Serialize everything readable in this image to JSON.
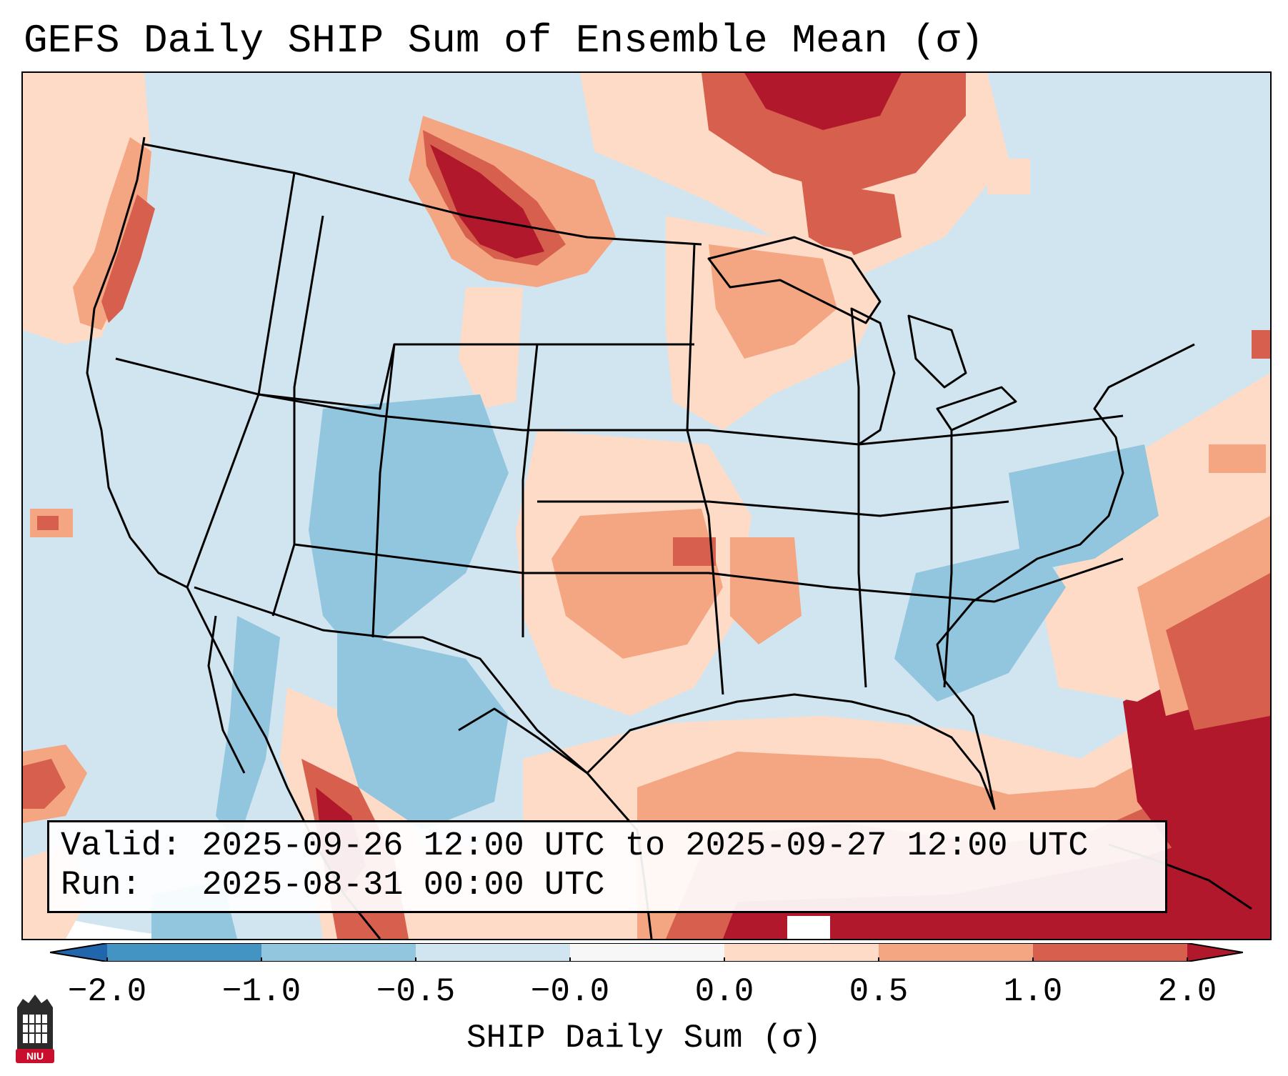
{
  "title": "GEFS Daily SHIP Sum of Ensemble Mean (σ)",
  "info": {
    "valid_label": "Valid:",
    "valid_value": "2025-09-26 12:00 UTC to 2025-09-27 12:00 UTC",
    "run_label": "Run:",
    "run_value": "2025-08-31 00:00 UTC"
  },
  "colorbar": {
    "label": "SHIP Daily Sum (σ)",
    "ticks": [
      "−2.0",
      "−1.0",
      "−0.5",
      "−0.0",
      "0.0",
      "0.5",
      "1.0",
      "2.0"
    ],
    "colors": {
      "extend_low": "#2166ac",
      "bin_m2_m1": "#4393c3",
      "bin_m1_m05": "#92c5de",
      "bin_m05_0": "#d1e5f0",
      "bin_0": "#f7f7f7",
      "bin_0_05": "#fddbc7",
      "bin_05_1": "#f4a582",
      "bin_1_2": "#d6604d",
      "extend_high": "#b2182b"
    }
  },
  "logo": {
    "text": "NIU",
    "color": "#c8102e"
  }
}
